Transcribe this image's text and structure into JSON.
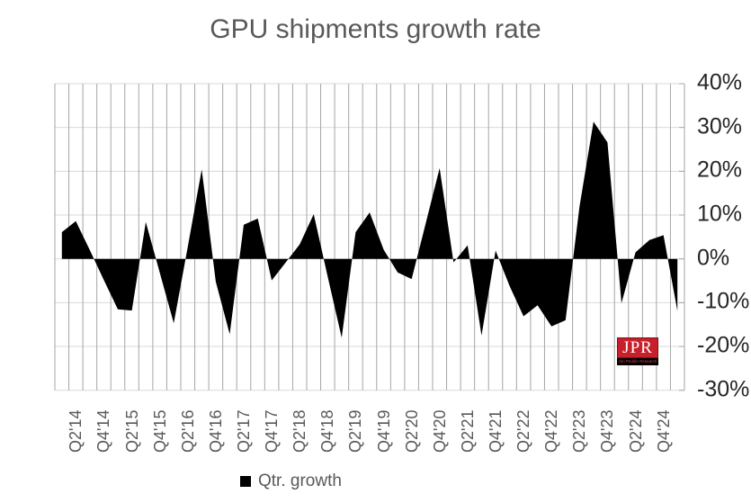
{
  "title": "GPU shipments growth rate",
  "legend": {
    "label": "Qtr. growth"
  },
  "logo": {
    "text": "JPR",
    "subtext": "Jon Peddie Research"
  },
  "colors": {
    "title_text": "#595959",
    "axis_label_text": "#262626",
    "x_label_text": "#595959",
    "vertical_gridline": "#a6a6a6",
    "horizontal_gridline": "#d9d9d9",
    "series_fill": "#000000",
    "logo_red": "#c8202a",
    "background": "#ffffff"
  },
  "chart_data": {
    "type": "area",
    "title": "GPU shipments growth rate",
    "series_name": "Qtr. growth",
    "x": [
      "Q1'14",
      "Q2'14",
      "Q3'14",
      "Q4'14",
      "Q1'15",
      "Q2'15",
      "Q3'15",
      "Q4'15",
      "Q1'16",
      "Q2'16",
      "Q3'16",
      "Q4'16",
      "Q1'17",
      "Q2'17",
      "Q3'17",
      "Q4'17",
      "Q1'18",
      "Q2'18",
      "Q3'18",
      "Q4'18",
      "Q1'19",
      "Q2'19",
      "Q3'19",
      "Q4'19",
      "Q1'20",
      "Q2'20",
      "Q3'20",
      "Q4'20",
      "Q1'21",
      "Q2'21",
      "Q3'21",
      "Q4'21",
      "Q1'22",
      "Q2'22",
      "Q3'22",
      "Q4'22",
      "Q1'23",
      "Q2'23",
      "Q3'23",
      "Q4'23",
      "Q1'24",
      "Q2'24",
      "Q3'24",
      "Q4'24",
      "Q1'25"
    ],
    "values": [
      6.1,
      8.6,
      2.0,
      -4.8,
      -11.5,
      -11.8,
      8.4,
      -3.2,
      -14.7,
      2.8,
      20.4,
      -5.2,
      -17.2,
      7.8,
      9.2,
      -4.9,
      -0.8,
      3.3,
      10.2,
      -4.0,
      -18.0,
      6.1,
      10.6,
      2.1,
      -3.1,
      -4.6,
      8.0,
      20.7,
      -0.8,
      3.1,
      -17.5,
      1.9,
      -6.2,
      -13.1,
      -10.6,
      -15.4,
      -14.0,
      11.9,
      31.3,
      26.6,
      -10.1,
      1.5,
      4.3,
      5.4,
      -11.9
    ],
    "x_tick_labels": [
      "Q2'14",
      "Q4'14",
      "Q2'15",
      "Q4'15",
      "Q2'16",
      "Q4'16",
      "Q2'17",
      "Q4'17",
      "Q2'18",
      "Q4'18",
      "Q2'19",
      "Q4'19",
      "Q2'20",
      "Q4'20",
      "Q2'21",
      "Q4'21",
      "Q2'22",
      "Q4'22",
      "Q2'23",
      "Q4'23",
      "Q2'24",
      "Q4'24"
    ],
    "x_labeled_every": 2,
    "x_first_labeled_index": 1,
    "y_ticks": [
      40,
      30,
      20,
      10,
      0,
      -10,
      -20,
      -30
    ],
    "y_tick_labels": [
      "40%",
      "30%",
      "20%",
      "10%",
      "0%",
      "-10%",
      "-20%",
      "-30%"
    ],
    "ylim": [
      -30,
      40
    ],
    "grid": {
      "vertical": true,
      "horizontal": true
    },
    "legend_position": "bottom",
    "units": "percent"
  }
}
